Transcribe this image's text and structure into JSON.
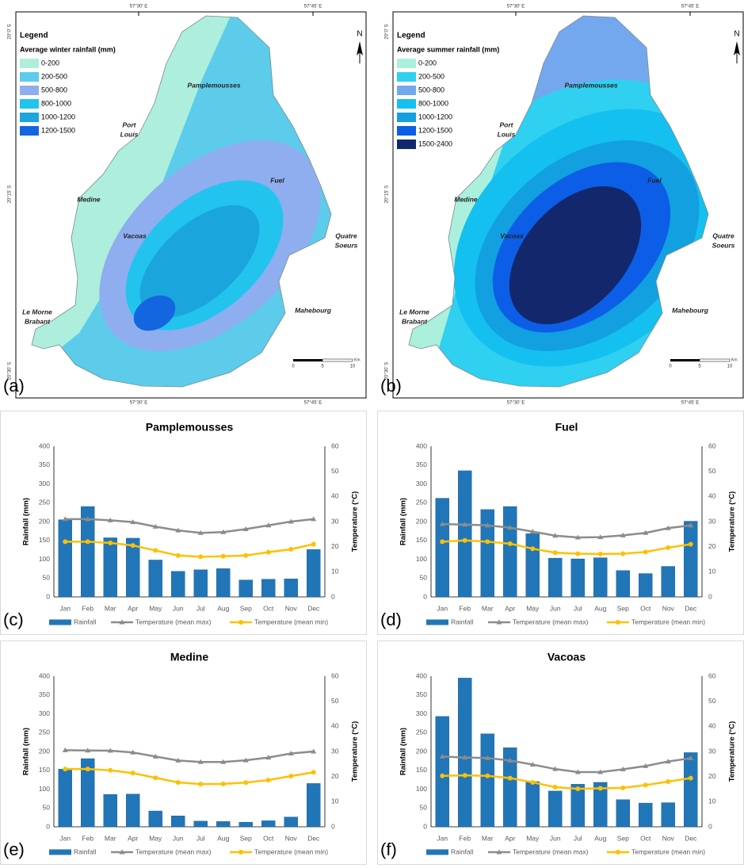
{
  "maps": [
    {
      "panel": "(a)",
      "legend_heading": "Legend",
      "legend_title": "Average winter rainfall (mm)",
      "legend_items": [
        {
          "label": "0-200",
          "color": "#aeeedd"
        },
        {
          "label": "200-500",
          "color": "#5cccea"
        },
        {
          "label": "500-800",
          "color": "#8eaef0"
        },
        {
          "label": "800-1000",
          "color": "#22c4ee"
        },
        {
          "label": "1000-1200",
          "color": "#1aa6dc"
        },
        {
          "label": "1200-1500",
          "color": "#1466e0"
        }
      ],
      "places": [
        {
          "lines": [
            "Pamplemousses"
          ]
        },
        {
          "lines": [
            "Port",
            "Louis"
          ]
        },
        {
          "lines": [
            "Medine"
          ]
        },
        {
          "lines": [
            "Fuel"
          ]
        },
        {
          "lines": [
            "Vacoas"
          ]
        },
        {
          "lines": [
            "Quatre",
            "Soeurs"
          ]
        },
        {
          "lines": [
            "Mahebourg"
          ]
        },
        {
          "lines": [
            "Le Morne",
            "Brabant"
          ]
        }
      ],
      "lon_labels": [
        "57°30' E",
        "57°45' E"
      ],
      "lat_labels": [
        "20°0' S",
        "20°15' S",
        "20°30' S"
      ],
      "north": "N",
      "scale_labels": [
        "0",
        "5",
        "10"
      ],
      "scale_unit": "Km"
    },
    {
      "panel": "(b)",
      "legend_heading": "Legend",
      "legend_title": "Average summer rainfall (mm)",
      "legend_items": [
        {
          "label": "0-200",
          "color": "#aaf0dc"
        },
        {
          "label": "200-500",
          "color": "#30d0f0"
        },
        {
          "label": "500-800",
          "color": "#74a8ee"
        },
        {
          "label": "800-1000",
          "color": "#14c0f0"
        },
        {
          "label": "1000-1200",
          "color": "#12a0e0"
        },
        {
          "label": "1200-1500",
          "color": "#0c5ee6"
        },
        {
          "label": "1500-2400",
          "color": "#13286c"
        }
      ],
      "places": [
        {
          "lines": [
            "Pamplemousses"
          ]
        },
        {
          "lines": [
            "Port",
            "Louis"
          ]
        },
        {
          "lines": [
            "Medine"
          ]
        },
        {
          "lines": [
            "Fuel"
          ]
        },
        {
          "lines": [
            "Vacoas"
          ]
        },
        {
          "lines": [
            "Quatre",
            "Soeurs"
          ]
        },
        {
          "lines": [
            "Mahebourg"
          ]
        },
        {
          "lines": [
            "Le Morne",
            "Brabant"
          ]
        }
      ],
      "lon_labels": [
        "57°30' E",
        "57°45' E"
      ],
      "lat_labels": [
        "20°0' S",
        "20°15' S",
        "20°30' S"
      ],
      "north": "N",
      "scale_labels": [
        "0",
        "5",
        "10"
      ],
      "scale_unit": "Km"
    }
  ],
  "chart_data": [
    {
      "type": "bar",
      "panel": "(c)",
      "title": "Pamplemousses",
      "ylabel": "Rainfall (mm)",
      "y2label": "Temperature (°C)",
      "categories": [
        "Jan",
        "Feb",
        "Mar",
        "Apr",
        "May",
        "Jun",
        "Jul",
        "Aug",
        "Sep",
        "Oct",
        "Nov",
        "Dec"
      ],
      "series": [
        {
          "name": "Rainfall",
          "type": "bar",
          "color": "#2176b8",
          "values": [
            205,
            240,
            157,
            156,
            98,
            68,
            72,
            75,
            45,
            47,
            48,
            126
          ]
        },
        {
          "name": "Temperature (mean max)",
          "type": "line",
          "axis": "y2",
          "color": "#8c8c8c",
          "marker": "triangle",
          "values": [
            31,
            31,
            30.5,
            29.8,
            28,
            26.5,
            25.5,
            25.8,
            27,
            28.5,
            30,
            31
          ]
        },
        {
          "name": "Temperature (mean min)",
          "type": "line",
          "axis": "y2",
          "color": "#ffc000",
          "marker": "circle",
          "values": [
            22,
            22,
            21.5,
            20.5,
            18.5,
            16.5,
            16,
            16.2,
            16.5,
            17.8,
            19,
            21
          ]
        }
      ],
      "ylim": [
        0,
        400
      ],
      "yticks": [
        0,
        50,
        100,
        150,
        200,
        250,
        300,
        350,
        400
      ],
      "y2lim": [
        0,
        60
      ],
      "y2ticks": [
        0,
        10,
        20,
        30,
        40,
        50,
        60
      ],
      "grid": false
    },
    {
      "type": "bar",
      "panel": "(d)",
      "title": "Fuel",
      "ylabel": "Rainfall (mm)",
      "y2label": "Temperature (°C)",
      "categories": [
        "Jan",
        "Feb",
        "Mar",
        "Apr",
        "May",
        "Jun",
        "Jul",
        "Aug",
        "Sep",
        "Oct",
        "Nov",
        "Dec"
      ],
      "series": [
        {
          "name": "Rainfall",
          "type": "bar",
          "color": "#2176b8",
          "values": [
            262,
            335,
            232,
            240,
            168,
            103,
            101,
            104,
            70,
            62,
            81,
            201
          ]
        },
        {
          "name": "Temperature (mean max)",
          "type": "line",
          "axis": "y2",
          "color": "#8c8c8c",
          "marker": "triangle",
          "values": [
            29,
            28.8,
            28.5,
            27.6,
            26,
            24.4,
            23.7,
            23.8,
            24.5,
            25.5,
            27.4,
            28.5
          ]
        },
        {
          "name": "Temperature (mean min)",
          "type": "line",
          "axis": "y2",
          "color": "#ffc000",
          "marker": "circle",
          "values": [
            22,
            22.5,
            22,
            21.2,
            19.2,
            17.6,
            17.2,
            17.1,
            17.2,
            17.9,
            19.6,
            21
          ]
        }
      ],
      "ylim": [
        0,
        400
      ],
      "yticks": [
        0,
        50,
        100,
        150,
        200,
        250,
        300,
        350,
        400
      ],
      "y2lim": [
        0,
        60
      ],
      "y2ticks": [
        0,
        10,
        20,
        30,
        40,
        50,
        60
      ],
      "grid": false
    },
    {
      "type": "bar",
      "panel": "(e)",
      "title": "Medine",
      "ylabel": "Rainfall (mm)",
      "y2label": "Temperature (°C)",
      "categories": [
        "Jan",
        "Feb",
        "Mar",
        "Apr",
        "May",
        "Jun",
        "Jul",
        "Aug",
        "Sep",
        "Oct",
        "Nov",
        "Dec"
      ],
      "series": [
        {
          "name": "Rainfall",
          "type": "bar",
          "color": "#2176b8",
          "values": [
            153,
            181,
            86,
            87,
            42,
            29,
            15,
            14,
            12,
            16,
            26,
            115
          ]
        },
        {
          "name": "Temperature (mean max)",
          "type": "line",
          "axis": "y2",
          "color": "#8c8c8c",
          "marker": "triangle",
          "values": [
            30.5,
            30.4,
            30.3,
            29.6,
            28,
            26.4,
            25.8,
            25.8,
            26.5,
            27.6,
            29.2,
            30
          ]
        },
        {
          "name": "Temperature (mean min)",
          "type": "line",
          "axis": "y2",
          "color": "#ffc000",
          "marker": "circle",
          "values": [
            23,
            23,
            22.5,
            21.4,
            19.5,
            17.7,
            17,
            17.1,
            17.6,
            18.6,
            20.2,
            21.7
          ]
        }
      ],
      "ylim": [
        0,
        400
      ],
      "yticks": [
        0,
        50,
        100,
        150,
        200,
        250,
        300,
        350,
        400
      ],
      "y2lim": [
        0,
        60
      ],
      "y2ticks": [
        0,
        10,
        20,
        30,
        40,
        50,
        60
      ],
      "grid": false
    },
    {
      "type": "bar",
      "panel": "(f)",
      "title": "Vacoas",
      "ylabel": "Rainfall (mm)",
      "y2label": "Temperature (°C)",
      "categories": [
        "Jan",
        "Feb",
        "Mar",
        "Apr",
        "May",
        "Jun",
        "Jul",
        "Aug",
        "Sep",
        "Oct",
        "Nov",
        "Dec"
      ],
      "series": [
        {
          "name": "Rainfall",
          "type": "bar",
          "color": "#2176b8",
          "values": [
            293,
            395,
            247,
            210,
            120,
            95,
            113,
            118,
            72,
            63,
            64,
            197
          ]
        },
        {
          "name": "Temperature (mean max)",
          "type": "line",
          "axis": "y2",
          "color": "#8c8c8c",
          "marker": "triangle",
          "values": [
            28,
            27.6,
            27.4,
            26.4,
            24.8,
            23,
            21.8,
            21.8,
            22.9,
            24.2,
            26,
            27.3
          ]
        },
        {
          "name": "Temperature (mean min)",
          "type": "line",
          "axis": "y2",
          "color": "#ffc000",
          "marker": "circle",
          "values": [
            20.3,
            20.5,
            20.3,
            19.4,
            17.7,
            15.8,
            15.1,
            15.3,
            15.5,
            16.6,
            18,
            19.4
          ]
        }
      ],
      "ylim": [
        0,
        400
      ],
      "yticks": [
        0,
        50,
        100,
        150,
        200,
        250,
        300,
        350,
        400
      ],
      "y2lim": [
        0,
        60
      ],
      "y2ticks": [
        0,
        10,
        20,
        30,
        40,
        50,
        60
      ],
      "grid": false
    }
  ]
}
